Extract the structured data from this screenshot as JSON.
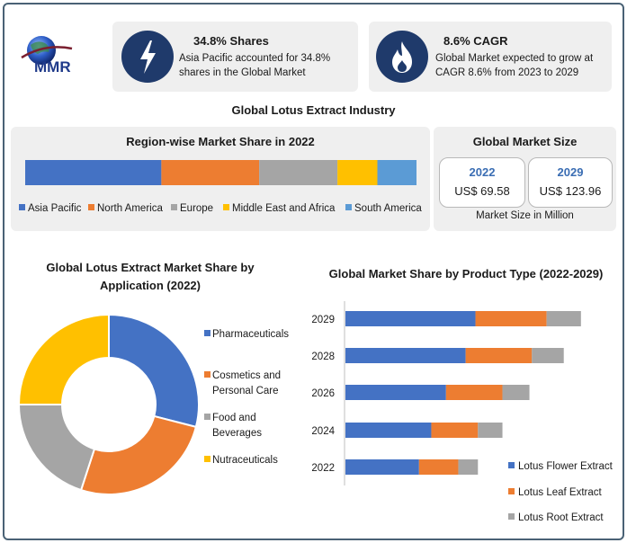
{
  "colors": {
    "asia_pacific": "#4472c4",
    "north_america": "#ed7d31",
    "europe": "#a5a5a5",
    "middle_east_africa": "#ffc000",
    "south_america": "#5b9bd5",
    "dark_navy": "#1f3a6b"
  },
  "logo": {
    "text": "MMR",
    "icon": "globe-logo-icon"
  },
  "stats": [
    {
      "icon": "lightning-icon",
      "title": "34.8% Shares",
      "line1": "Asia Pacific accounted for 34.8%",
      "line2": "shares in the Global Market"
    },
    {
      "icon": "flame-icon",
      "title": "8.6% CAGR",
      "line1": "Global Market expected to grow at",
      "line2": "CAGR 8.6% from 2023 to 2029"
    }
  ],
  "main_title": "Global Lotus Extract Industry",
  "market_size": {
    "title": "Global Market Size",
    "boxes": [
      {
        "year": "2022",
        "value": "US$ 69.58"
      },
      {
        "year": "2029",
        "value": "US$ 123.96"
      }
    ],
    "caption": "Market Size in Million"
  },
  "chart_data": [
    {
      "type": "bar",
      "orientation": "horizontal-stacked-100",
      "title": "Region-wise Market Share in 2022",
      "series": [
        {
          "name": "Asia Pacific",
          "value": 34.8,
          "color": "#4472c4"
        },
        {
          "name": "North America",
          "value": 25,
          "color": "#ed7d31"
        },
        {
          "name": "Europe",
          "value": 20,
          "color": "#a5a5a5"
        },
        {
          "name": "Middle East and Africa",
          "value": 10.2,
          "color": "#ffc000"
        },
        {
          "name": "South America",
          "value": 10,
          "color": "#5b9bd5"
        }
      ],
      "legend": "bottom"
    },
    {
      "type": "pie",
      "subtype": "donut",
      "title": "Global Lotus Extract Market Share by Application (2022)",
      "labels": [
        "Pharmaceuticals",
        "Cosmetics and Personal Care",
        "Food and Beverages",
        "Nutraceuticals"
      ],
      "label_lines": [
        [
          "Pharmaceuticals"
        ],
        [
          "Cosmetics and",
          "Personal Care"
        ],
        [
          "Food and",
          "Beverages"
        ],
        [
          "Nutraceuticals"
        ]
      ],
      "values": [
        29,
        26,
        20,
        25
      ],
      "colors": [
        "#4472c4",
        "#ed7d31",
        "#a5a5a5",
        "#ffc000"
      ],
      "legend": "right"
    },
    {
      "type": "bar",
      "orientation": "horizontal-stacked",
      "title": "Global Market Share by Product Type (2022-2029)",
      "categories": [
        "2029",
        "2028",
        "2026",
        "2024",
        "2022"
      ],
      "series": [
        {
          "name": "Lotus Flower Extract",
          "values": [
            53,
            49,
            41,
            35,
            30
          ],
          "color": "#4472c4"
        },
        {
          "name": "Lotus Leaf Extract",
          "values": [
            29,
            27,
            23,
            19,
            16
          ],
          "color": "#ed7d31"
        },
        {
          "name": "Lotus Root Extract",
          "values": [
            14,
            13,
            11,
            10,
            8
          ],
          "color": "#a5a5a5"
        }
      ],
      "xlim": [
        0,
        110
      ],
      "legend": "bottom-right"
    }
  ]
}
